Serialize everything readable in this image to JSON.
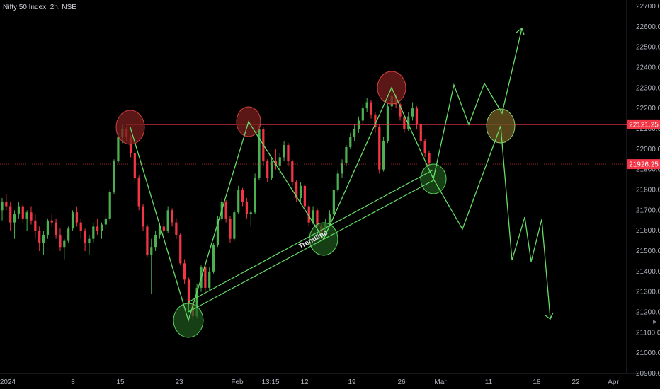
{
  "title": "Nifty 50 Index, 2h, NSE",
  "chart_data": {
    "type": "candlestick",
    "title": "Nifty 50 Index, 2h, NSE",
    "ylim": [
      20900,
      22700
    ],
    "y_ticks": [
      20900,
      21000,
      21100,
      21200,
      21300,
      21400,
      21500,
      21600,
      21700,
      21800,
      21900,
      22000,
      22100,
      22200,
      22300,
      22400,
      22500,
      22600,
      22700
    ],
    "x_tick_labels": [
      "2024",
      "8",
      "15",
      "23",
      "Feb",
      "13:15",
      "12",
      "19",
      "26",
      "Mar",
      "11",
      "18",
      "22",
      "Apr"
    ],
    "price_lines": [
      {
        "label": "22121.25",
        "value": 22121.25,
        "color": "#f23645"
      },
      {
        "label": "21926.25",
        "value": 21926.25,
        "color": "#f23645"
      }
    ],
    "annotation": "Trendline",
    "colors": {
      "up": "#4caf50",
      "down": "#f23645",
      "drawing": "#66dd66"
    },
    "candles": [
      [
        21700,
        21760,
        21650,
        21740
      ],
      [
        21740,
        21780,
        21700,
        21720
      ],
      [
        21720,
        21740,
        21600,
        21640
      ],
      [
        21640,
        21700,
        21560,
        21680
      ],
      [
        21680,
        21740,
        21660,
        21720
      ],
      [
        21720,
        21730,
        21640,
        21660
      ],
      [
        21660,
        21700,
        21600,
        21690
      ],
      [
        21690,
        21720,
        21630,
        21650
      ],
      [
        21650,
        21680,
        21560,
        21600
      ],
      [
        21600,
        21620,
        21500,
        21540
      ],
      [
        21540,
        21600,
        21480,
        21580
      ],
      [
        21580,
        21660,
        21560,
        21650
      ],
      [
        21650,
        21680,
        21620,
        21640
      ],
      [
        21640,
        21660,
        21560,
        21580
      ],
      [
        21580,
        21610,
        21500,
        21520
      ],
      [
        21520,
        21560,
        21460,
        21550
      ],
      [
        21550,
        21620,
        21540,
        21610
      ],
      [
        21610,
        21700,
        21600,
        21690
      ],
      [
        21690,
        21720,
        21620,
        21640
      ],
      [
        21640,
        21660,
        21560,
        21600
      ],
      [
        21600,
        21610,
        21500,
        21540
      ],
      [
        21540,
        21580,
        21480,
        21560
      ],
      [
        21560,
        21640,
        21540,
        21620
      ],
      [
        21620,
        21660,
        21580,
        21600
      ],
      [
        21600,
        21640,
        21560,
        21630
      ],
      [
        21630,
        21680,
        21610,
        21660
      ],
      [
        21660,
        21800,
        21650,
        21790
      ],
      [
        21790,
        21950,
        21780,
        21940
      ],
      [
        21940,
        22080,
        21930,
        22060
      ],
      [
        22060,
        22120,
        22030,
        22100
      ],
      [
        22100,
        22110,
        22040,
        22060
      ],
      [
        22060,
        22070,
        21960,
        21980
      ],
      [
        21980,
        21990,
        21840,
        21860
      ],
      [
        21860,
        21870,
        21700,
        21720
      ],
      [
        21720,
        21730,
        21600,
        21620
      ],
      [
        21620,
        21630,
        21470,
        21480
      ],
      [
        21480,
        21560,
        21290,
        21520
      ],
      [
        21520,
        21600,
        21500,
        21580
      ],
      [
        21580,
        21640,
        21560,
        21620
      ],
      [
        21620,
        21660,
        21580,
        21600
      ],
      [
        21600,
        21720,
        21590,
        21700
      ],
      [
        21700,
        21710,
        21620,
        21640
      ],
      [
        21640,
        21660,
        21560,
        21580
      ],
      [
        21580,
        21590,
        21430,
        21440
      ],
      [
        21440,
        21460,
        21340,
        21360
      ],
      [
        21360,
        21370,
        21230,
        21240
      ],
      [
        21240,
        21250,
        21160,
        21180
      ],
      [
        21180,
        21340,
        21170,
        21320
      ],
      [
        21320,
        21430,
        21300,
        21420
      ],
      [
        21420,
        21430,
        21300,
        21320
      ],
      [
        21320,
        21420,
        21310,
        21400
      ],
      [
        21400,
        21540,
        21390,
        21530
      ],
      [
        21530,
        21670,
        21520,
        21660
      ],
      [
        21660,
        21760,
        21650,
        21740
      ],
      [
        21740,
        21750,
        21640,
        21660
      ],
      [
        21660,
        21670,
        21540,
        21560
      ],
      [
        21560,
        21700,
        21550,
        21690
      ],
      [
        21690,
        21820,
        21680,
        21800
      ],
      [
        21800,
        21810,
        21720,
        21740
      ],
      [
        21740,
        21760,
        21660,
        21680
      ],
      [
        21680,
        21700,
        21620,
        21690
      ],
      [
        21690,
        21880,
        21680,
        21860
      ],
      [
        21860,
        22120,
        21850,
        22100
      ],
      [
        22100,
        22110,
        21920,
        21940
      ],
      [
        21940,
        21950,
        21840,
        21860
      ],
      [
        21860,
        21960,
        21850,
        21940
      ],
      [
        21940,
        22000,
        21900,
        21920
      ],
      [
        21920,
        21980,
        21880,
        21960
      ],
      [
        21960,
        22040,
        21940,
        22020
      ],
      [
        22020,
        22030,
        21920,
        21940
      ],
      [
        21940,
        21950,
        21820,
        21840
      ],
      [
        21840,
        21850,
        21740,
        21760
      ],
      [
        21760,
        21840,
        21740,
        21820
      ],
      [
        21820,
        21830,
        21700,
        21720
      ],
      [
        21720,
        21730,
        21620,
        21640
      ],
      [
        21640,
        21720,
        21630,
        21700
      ],
      [
        21700,
        21710,
        21600,
        21620
      ],
      [
        21620,
        21630,
        21560,
        21580
      ],
      [
        21580,
        21660,
        21570,
        21640
      ],
      [
        21640,
        21700,
        21620,
        21680
      ],
      [
        21680,
        21810,
        21670,
        21800
      ],
      [
        21800,
        21900,
        21790,
        21880
      ],
      [
        21880,
        21950,
        21860,
        21930
      ],
      [
        21930,
        22020,
        21920,
        22010
      ],
      [
        22010,
        22080,
        22000,
        22060
      ],
      [
        22060,
        22120,
        22040,
        22100
      ],
      [
        22100,
        22160,
        22080,
        22140
      ],
      [
        22140,
        22220,
        22120,
        22200
      ],
      [
        22200,
        22250,
        22180,
        22230
      ],
      [
        22230,
        22240,
        22150,
        22170
      ],
      [
        22170,
        22180,
        22080,
        22110
      ],
      [
        22110,
        22120,
        21880,
        21900
      ],
      [
        21900,
        22060,
        21890,
        22040
      ],
      [
        22040,
        22230,
        22030,
        22210
      ],
      [
        22210,
        22290,
        22190,
        22260
      ],
      [
        22260,
        22270,
        22200,
        22220
      ],
      [
        22220,
        22230,
        22140,
        22160
      ],
      [
        22160,
        22170,
        22080,
        22100
      ],
      [
        22100,
        22180,
        22090,
        22160
      ],
      [
        22160,
        22230,
        22140,
        22200
      ],
      [
        22200,
        22210,
        22100,
        22120
      ],
      [
        22120,
        22130,
        22020,
        22040
      ],
      [
        22040,
        22050,
        21960,
        21980
      ],
      [
        21980,
        21990,
        21920,
        21930
      ]
    ]
  }
}
